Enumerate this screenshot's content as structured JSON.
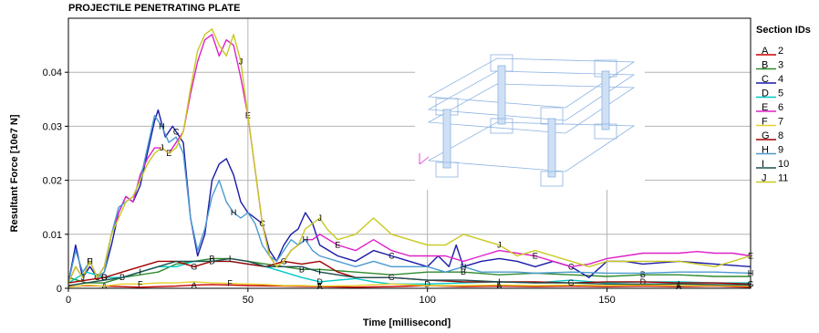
{
  "chart_data": {
    "type": "line",
    "title": "PROJECTILE PENETRATING PLATE",
    "xlabel": "Time [millisecond]",
    "ylabel": "Resultant Force [10e7 N]",
    "xlim": [
      0,
      190
    ],
    "ylim": [
      0,
      0.05
    ],
    "x_ticks": [
      "0",
      "50",
      "100",
      "150"
    ],
    "y_ticks": [
      "0",
      "0.01",
      "0.02",
      "0.03",
      "0.04"
    ],
    "grid": true,
    "legend_title": "Section IDs",
    "legend_position": "right",
    "series": [
      {
        "name": "2",
        "marker": "A",
        "color": "#cc0000",
        "x": [
          0,
          5,
          10,
          15,
          20,
          25,
          30,
          35,
          40,
          45,
          50,
          60,
          70,
          80,
          90,
          100,
          110,
          120,
          130,
          140,
          150,
          160,
          170,
          180,
          190
        ],
        "y": [
          0.0003,
          0.0005,
          0.0004,
          0.0003,
          0.0002,
          0.0003,
          0.0004,
          0.0006,
          0.0007,
          0.0006,
          0.0005,
          0.0004,
          0.0003,
          0.0002,
          0.0003,
          0.0005,
          0.0003,
          0.0004,
          0.0003,
          0.0004,
          0.0003,
          0.0004,
          0.0003,
          0.0004,
          0.0002
        ]
      },
      {
        "name": "3",
        "marker": "B",
        "color": "#2e8b2e",
        "x": [
          0,
          5,
          10,
          15,
          20,
          25,
          30,
          35,
          40,
          45,
          50,
          55,
          60,
          65,
          70,
          80,
          90,
          100,
          110,
          120,
          130,
          140,
          150,
          160,
          170,
          180,
          190
        ],
        "y": [
          0.002,
          0.001,
          0.001,
          0.002,
          0.0025,
          0.003,
          0.0045,
          0.005,
          0.0055,
          0.0055,
          0.005,
          0.0045,
          0.004,
          0.0035,
          0.0035,
          0.003,
          0.0025,
          0.003,
          0.003,
          0.0025,
          0.0028,
          0.0025,
          0.0022,
          0.0025,
          0.0025,
          0.0022,
          0.0022
        ]
      },
      {
        "name": "4",
        "marker": "C",
        "color": "#1a1aa8",
        "x": [
          0,
          2,
          4,
          6,
          8,
          10,
          12,
          14,
          16,
          18,
          20,
          22,
          24,
          25,
          27,
          29,
          30,
          32,
          34,
          36,
          38,
          40,
          42,
          44,
          46,
          48,
          50,
          52,
          54,
          56,
          58,
          60,
          62,
          64,
          66,
          68,
          70,
          75,
          80,
          85,
          90,
          95,
          100,
          103,
          106,
          108,
          110,
          115,
          120,
          125,
          130,
          135,
          140,
          145,
          150,
          155,
          160,
          170,
          180,
          190
        ],
        "y": [
          0.001,
          0.008,
          0.002,
          0.004,
          0.002,
          0.003,
          0.008,
          0.014,
          0.017,
          0.016,
          0.019,
          0.025,
          0.031,
          0.033,
          0.028,
          0.03,
          0.029,
          0.027,
          0.013,
          0.006,
          0.01,
          0.02,
          0.023,
          0.024,
          0.021,
          0.016,
          0.014,
          0.013,
          0.012,
          0.007,
          0.005,
          0.008,
          0.01,
          0.011,
          0.014,
          0.012,
          0.008,
          0.006,
          0.005,
          0.007,
          0.006,
          0.005,
          0.004,
          0.006,
          0.004,
          0.008,
          0.004,
          0.005,
          0.0055,
          0.005,
          0.004,
          0.005,
          0.004,
          0.002,
          0.005,
          0.005,
          0.0045,
          0.005,
          0.0045,
          0.004
        ]
      },
      {
        "name": "5",
        "marker": "D",
        "color": "#00c8c8",
        "x": [
          0,
          5,
          10,
          15,
          20,
          25,
          30,
          35,
          40,
          45,
          50,
          55,
          60,
          65,
          70,
          75,
          80,
          85,
          90,
          95,
          100,
          110,
          120,
          130,
          140,
          150,
          160,
          170,
          180,
          190
        ],
        "y": [
          0.001,
          0.003,
          0.002,
          0.002,
          0.003,
          0.004,
          0.004,
          0.005,
          0.005,
          0.005,
          0.0045,
          0.004,
          0.003,
          0.002,
          0.0012,
          0.0015,
          0.0018,
          0.0012,
          0.0008,
          0.0008,
          0.0008,
          0.001,
          0.0012,
          0.001,
          0.0015,
          0.001,
          0.0012,
          0.0012,
          0.001,
          0.001
        ]
      },
      {
        "name": "6",
        "marker": "E",
        "color": "#e020c8",
        "x": [
          0,
          2,
          4,
          6,
          8,
          10,
          12,
          14,
          16,
          18,
          20,
          22,
          24,
          26,
          28,
          30,
          32,
          34,
          36,
          38,
          40,
          42,
          44,
          46,
          48,
          50,
          52,
          54,
          56,
          58,
          60,
          62,
          64,
          66,
          68,
          70,
          75,
          80,
          85,
          90,
          95,
          100,
          105,
          110,
          115,
          120,
          125,
          130,
          135,
          140,
          145,
          150,
          155,
          160,
          170,
          175,
          180,
          185,
          190
        ],
        "y": [
          0.001,
          0.004,
          0.002,
          0.005,
          0.002,
          0.004,
          0.01,
          0.014,
          0.017,
          0.016,
          0.021,
          0.024,
          0.026,
          0.026,
          0.025,
          0.027,
          0.029,
          0.036,
          0.042,
          0.046,
          0.047,
          0.043,
          0.046,
          0.045,
          0.039,
          0.032,
          0.022,
          0.012,
          0.006,
          0.004,
          0.005,
          0.007,
          0.008,
          0.009,
          0.009,
          0.01,
          0.008,
          0.007,
          0.009,
          0.007,
          0.006,
          0.006,
          0.006,
          0.005,
          0.006,
          0.007,
          0.0065,
          0.006,
          0.005,
          0.004,
          0.0045,
          0.0055,
          0.006,
          0.0065,
          0.0065,
          0.0068,
          0.0065,
          0.0065,
          0.006
        ]
      },
      {
        "name": "7",
        "marker": "F",
        "color": "#e6d22e",
        "x": [
          0,
          5,
          10,
          15,
          20,
          25,
          30,
          35,
          40,
          45,
          50,
          55,
          60,
          65,
          70,
          80,
          90,
          100,
          110,
          120,
          130,
          140,
          150,
          160,
          170,
          180,
          190
        ],
        "y": [
          0.0002,
          0.0006,
          0.0004,
          0.0008,
          0.0008,
          0.001,
          0.001,
          0.0012,
          0.001,
          0.0009,
          0.0008,
          0.0007,
          0.0005,
          0.0005,
          0.0004,
          0.0005,
          0.0008,
          0.0005,
          0.0005,
          0.0006,
          0.0005,
          0.0006,
          0.0005,
          0.0006,
          0.0005,
          0.0005,
          0.0004
        ]
      },
      {
        "name": "8",
        "marker": "G",
        "color": "#a00000",
        "x": [
          0,
          5,
          10,
          15,
          20,
          25,
          30,
          35,
          40,
          45,
          50,
          55,
          60,
          65,
          70,
          75,
          80,
          90,
          100,
          110,
          120,
          130,
          140,
          150,
          160,
          170,
          180,
          190
        ],
        "y": [
          0.001,
          0.0015,
          0.002,
          0.003,
          0.004,
          0.005,
          0.005,
          0.004,
          0.005,
          0.005,
          0.0045,
          0.004,
          0.005,
          0.0045,
          0.005,
          0.003,
          0.002,
          0.002,
          0.0015,
          0.0012,
          0.0012,
          0.0012,
          0.001,
          0.0012,
          0.0012,
          0.001,
          0.001,
          0.0008
        ]
      },
      {
        "name": "9",
        "marker": "H",
        "color": "#4a9ad0",
        "x": [
          0,
          2,
          4,
          6,
          8,
          10,
          12,
          14,
          16,
          18,
          20,
          22,
          24,
          26,
          28,
          30,
          32,
          34,
          36,
          38,
          40,
          42,
          44,
          46,
          48,
          50,
          52,
          54,
          56,
          58,
          60,
          62,
          64,
          66,
          68,
          70,
          75,
          80,
          85,
          90,
          95,
          100,
          105,
          110,
          115,
          120,
          125,
          130,
          140,
          150,
          160,
          170,
          180,
          190
        ],
        "y": [
          0.001,
          0.007,
          0.003,
          0.005,
          0.002,
          0.003,
          0.01,
          0.015,
          0.016,
          0.017,
          0.02,
          0.026,
          0.032,
          0.03,
          0.027,
          0.028,
          0.025,
          0.013,
          0.007,
          0.011,
          0.017,
          0.02,
          0.016,
          0.014,
          0.013,
          0.014,
          0.012,
          0.008,
          0.006,
          0.005,
          0.007,
          0.009,
          0.008,
          0.009,
          0.007,
          0.006,
          0.005,
          0.004,
          0.005,
          0.004,
          0.004,
          0.004,
          0.003,
          0.004,
          0.003,
          0.003,
          0.003,
          0.0028,
          0.003,
          0.0028,
          0.0028,
          0.003,
          0.003,
          0.0028
        ]
      },
      {
        "name": "10",
        "marker": "I",
        "color": "#1f5050",
        "x": [
          0,
          5,
          10,
          15,
          20,
          25,
          30,
          35,
          40,
          45,
          50,
          55,
          60,
          65,
          70,
          80,
          90,
          100,
          110,
          120,
          130,
          140,
          150,
          160,
          170,
          180,
          190
        ],
        "y": [
          0.0005,
          0.001,
          0.0015,
          0.002,
          0.003,
          0.004,
          0.005,
          0.005,
          0.005,
          0.0055,
          0.005,
          0.004,
          0.004,
          0.004,
          0.003,
          0.002,
          0.002,
          0.0015,
          0.0015,
          0.0012,
          0.001,
          0.001,
          0.0008,
          0.0008,
          0.0008,
          0.0007,
          0.0006
        ]
      },
      {
        "name": "11",
        "marker": "J",
        "color": "#c8c820",
        "x": [
          0,
          2,
          4,
          6,
          8,
          10,
          12,
          14,
          16,
          18,
          20,
          22,
          24,
          26,
          28,
          30,
          32,
          34,
          36,
          38,
          40,
          42,
          44,
          46,
          48,
          50,
          52,
          54,
          56,
          58,
          60,
          62,
          64,
          66,
          68,
          70,
          72,
          75,
          80,
          85,
          90,
          95,
          100,
          105,
          110,
          115,
          120,
          125,
          130,
          135,
          140,
          145,
          150,
          160,
          170,
          180,
          190
        ],
        "y": [
          0.001,
          0.004,
          0.002,
          0.005,
          0.002,
          0.004,
          0.01,
          0.013,
          0.016,
          0.017,
          0.02,
          0.023,
          0.025,
          0.026,
          0.025,
          0.026,
          0.029,
          0.037,
          0.044,
          0.047,
          0.048,
          0.045,
          0.043,
          0.047,
          0.042,
          0.032,
          0.022,
          0.012,
          0.006,
          0.004,
          0.005,
          0.007,
          0.008,
          0.011,
          0.012,
          0.013,
          0.011,
          0.009,
          0.01,
          0.013,
          0.01,
          0.009,
          0.008,
          0.008,
          0.01,
          0.009,
          0.008,
          0.006,
          0.007,
          0.006,
          0.005,
          0.004,
          0.005,
          0.005,
          0.005,
          0.004,
          0.006
        ]
      }
    ]
  }
}
